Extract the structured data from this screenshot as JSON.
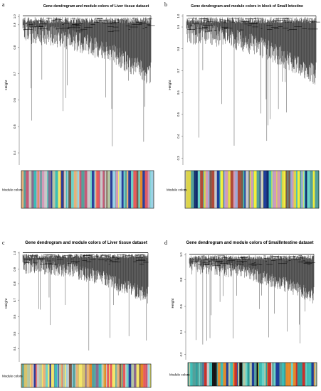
{
  "figure": {
    "panels": [
      {
        "letter": "a",
        "title": "Gene dendrogram and module colors of Liver tissue dataset",
        "ylabel": "Height",
        "module_label": "Module colors",
        "ticks": [
          "0.4",
          "0.5",
          "0.6",
          "0.7",
          "0.8",
          "0.9",
          "1.0"
        ],
        "palette": [
          "#c8c8c8",
          "#d39ab8",
          "#8b6a8f",
          "#e7b07a",
          "#b5c7a3",
          "#e85b5b",
          "#f3e66b",
          "#55a09a",
          "#3dbdb6",
          "#2b3d99",
          "#9bd2e6",
          "#7c5a48",
          "#e38a2a",
          "#6bd3c8",
          "#c45a78"
        ]
      },
      {
        "letter": "b",
        "title": "Gene dendrogram and module colors in block of Small Intestine",
        "ylabel": "Height",
        "module_label": "Module colors",
        "ticks": [
          "0.3",
          "0.4",
          "0.5",
          "0.6",
          "0.7",
          "0.8",
          "0.9",
          "1.0"
        ],
        "palette": [
          "#c8c8c8",
          "#d39ab8",
          "#1f3d9a",
          "#0f2a6b",
          "#9aa9d6",
          "#7c5a48",
          "#b04a3a",
          "#f3ef3a",
          "#dcd44a",
          "#3dbdb6",
          "#55a09a",
          "#6bd3c8"
        ]
      },
      {
        "letter": "c",
        "title": "Gene dendrogram and module colors of Liver tissue dataset",
        "ylabel": "Height",
        "module_label": "Module colors",
        "ticks": [
          "0.4",
          "0.5",
          "0.6",
          "0.7",
          "0.8",
          "0.9",
          "1.0"
        ],
        "palette": [
          "#c8c8c8",
          "#d6c26a",
          "#8b6a8f",
          "#e7b07a",
          "#b5c7a3",
          "#e85b5b",
          "#f3e66b",
          "#55a09a",
          "#3dbdb6",
          "#2b3d99",
          "#9bd2e6",
          "#7c5a48",
          "#e38a2a",
          "#6bd3c8",
          "#c45a78"
        ]
      },
      {
        "letter": "d",
        "title": "Gene dendrogram and module colors of SmallIntestine dataset",
        "ylabel": "Height",
        "module_label": "Module colors",
        "ticks": [
          "0.2",
          "0.4",
          "0.6",
          "0.8",
          "1.0"
        ],
        "palette": [
          "#c8c8c8",
          "#e38a2a",
          "#c9302c",
          "#b5c7a3",
          "#3dbdb6",
          "#2a9d9a",
          "#55a09a",
          "#6bd3c8",
          "#1f3d9a",
          "#f3ef3a",
          "#111111"
        ]
      }
    ]
  }
}
